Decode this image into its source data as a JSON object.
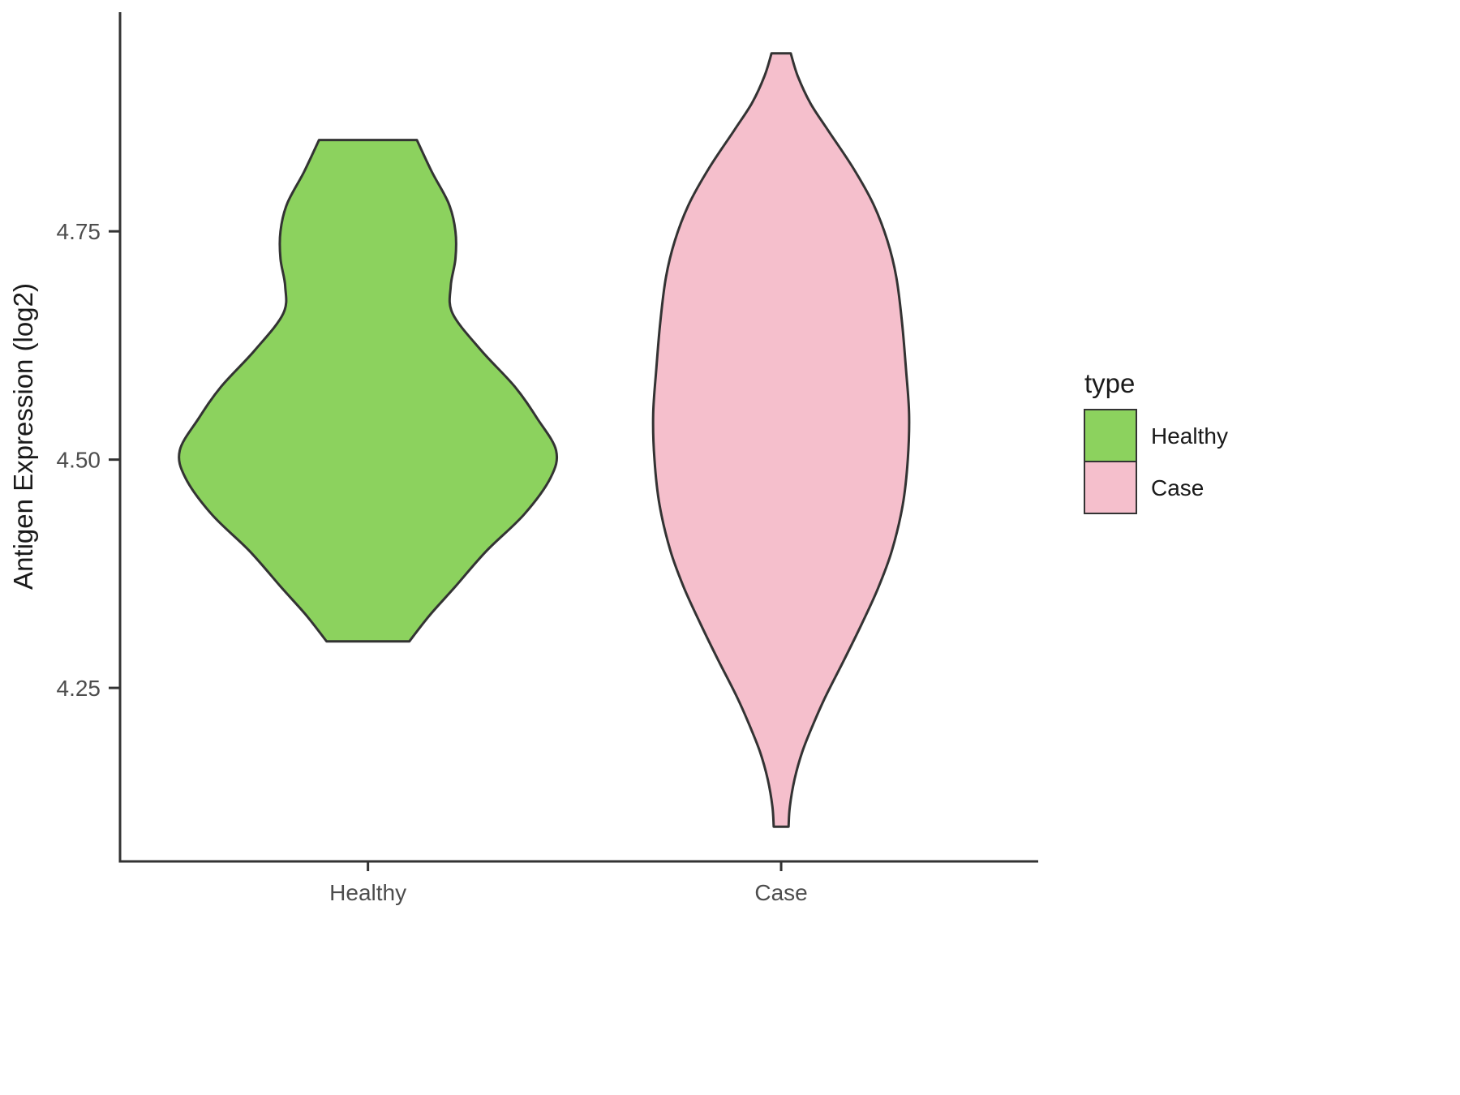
{
  "chart_data": {
    "type": "violin",
    "title": "",
    "xlabel": "",
    "ylabel": "Antigen Expression (log2)",
    "categories": [
      "Healthy",
      "Case"
    ],
    "y_ticks": [
      4.25,
      4.5,
      4.75
    ],
    "ylim": [
      4.06,
      4.99
    ],
    "grid": false,
    "legend": {
      "title": "type",
      "position": "right",
      "entries": [
        {
          "label": "Healthy",
          "color": "#8CD25E"
        },
        {
          "label": "Case",
          "color": "#F5BFCC"
        }
      ]
    },
    "colors": {
      "outline": "#333333",
      "axis": "#333333",
      "tick_text": "#4d4d4d",
      "healthy_fill": "#8CD25E",
      "case_fill": "#F5BFCC"
    },
    "series": [
      {
        "name": "Healthy",
        "color": "#8CD25E",
        "rel_width": 1.0,
        "y_range": [
          4.3,
          4.85
        ],
        "profile": [
          [
            4.85,
            0.26
          ],
          [
            4.815,
            0.34
          ],
          [
            4.78,
            0.43
          ],
          [
            4.75,
            0.465
          ],
          [
            4.72,
            0.465
          ],
          [
            4.69,
            0.44
          ],
          [
            4.66,
            0.45
          ],
          [
            4.62,
            0.6
          ],
          [
            4.58,
            0.78
          ],
          [
            4.545,
            0.9
          ],
          [
            4.51,
            1.0
          ],
          [
            4.48,
            0.97
          ],
          [
            4.44,
            0.83
          ],
          [
            4.4,
            0.63
          ],
          [
            4.36,
            0.46
          ],
          [
            4.33,
            0.33
          ],
          [
            4.301,
            0.22
          ]
        ]
      },
      {
        "name": "Case",
        "color": "#F5BFCC",
        "rel_width": 0.68,
        "y_range": [
          4.1,
          4.95
        ],
        "profile": [
          [
            4.945,
            0.075
          ],
          [
            4.92,
            0.13
          ],
          [
            4.89,
            0.23
          ],
          [
            4.86,
            0.37
          ],
          [
            4.82,
            0.56
          ],
          [
            4.78,
            0.72
          ],
          [
            4.74,
            0.83
          ],
          [
            4.7,
            0.9
          ],
          [
            4.65,
            0.945
          ],
          [
            4.6,
            0.975
          ],
          [
            4.55,
            1.0
          ],
          [
            4.5,
            0.99
          ],
          [
            4.45,
            0.95
          ],
          [
            4.4,
            0.865
          ],
          [
            4.36,
            0.76
          ],
          [
            4.32,
            0.63
          ],
          [
            4.28,
            0.49
          ],
          [
            4.24,
            0.345
          ],
          [
            4.21,
            0.25
          ],
          [
            4.18,
            0.165
          ],
          [
            4.15,
            0.105
          ],
          [
            4.12,
            0.068
          ],
          [
            4.098,
            0.058
          ]
        ]
      }
    ]
  }
}
